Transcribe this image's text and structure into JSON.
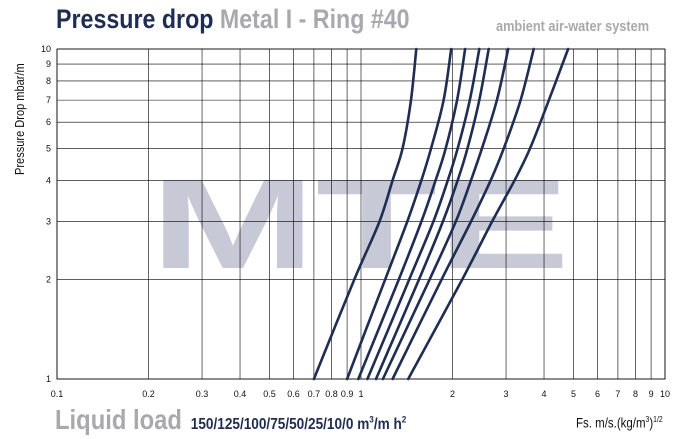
{
  "header": {
    "title_main": "Pressure drop",
    "title_sub": "Metal I - Ring #40",
    "system": "ambient air-water system"
  },
  "footer": {
    "liquid_label": "Liquid load",
    "liquid_values": "150/125/100/75/50/25/10/0",
    "liquid_unit_base": "m",
    "liquid_unit_exp": "3",
    "liquid_unit_tail": "/m h",
    "liquid_unit_exp2": "2",
    "fs_base": "Fs. m/s.(kg/m",
    "fs_exp": "3",
    "fs_close": ")",
    "fs_exp2": "1/2"
  },
  "watermark": "MTE",
  "colors": {
    "curve": "#1f2d52",
    "grid": "#000000",
    "watermark": "#c8c9d6",
    "title": "#1f2d52",
    "muted": "#a9a9ad"
  },
  "chart_data": {
    "type": "line",
    "title": "Pressure drop Metal I - Ring #40",
    "subtitle": "ambient air-water system",
    "xlabel": "Fs. m/s.(kg/m3)1/2",
    "ylabel": "Pressure Drop mbar/m",
    "x_scale": "log",
    "y_scale": "log",
    "xlim": [
      0.1,
      10
    ],
    "ylim": [
      1,
      10
    ],
    "x_ticks": [
      "0.1",
      "0.2",
      "0.3",
      "0.4",
      "0.5",
      "0.6",
      "0.7",
      "0.8",
      "0.9",
      "1",
      "2",
      "3",
      "4",
      "5",
      "6",
      "7",
      "8",
      "9",
      "10"
    ],
    "x_tick_values": [
      0.1,
      0.2,
      0.3,
      0.4,
      0.5,
      0.6,
      0.7,
      0.8,
      0.9,
      1,
      2,
      3,
      4,
      5,
      6,
      7,
      8,
      9,
      10
    ],
    "y_ticks": [
      "1",
      "2",
      "3",
      "4",
      "5",
      "6",
      "7",
      "8",
      "9",
      "10"
    ],
    "y_tick_values": [
      1,
      2,
      3,
      4,
      5,
      6,
      7,
      8,
      9,
      10
    ],
    "grid": true,
    "series": [
      {
        "name": "150",
        "points": [
          [
            0.7,
            1
          ],
          [
            0.95,
            2
          ],
          [
            1.15,
            3
          ],
          [
            1.27,
            4
          ],
          [
            1.37,
            5
          ],
          [
            1.46,
            7
          ],
          [
            1.52,
            10
          ]
        ]
      },
      {
        "name": "125",
        "points": [
          [
            0.9,
            1
          ],
          [
            1.2,
            2
          ],
          [
            1.42,
            3
          ],
          [
            1.58,
            4
          ],
          [
            1.7,
            5
          ],
          [
            1.87,
            7
          ],
          [
            1.98,
            10
          ]
        ]
      },
      {
        "name": "100",
        "points": [
          [
            0.98,
            1
          ],
          [
            1.33,
            2
          ],
          [
            1.58,
            3
          ],
          [
            1.76,
            4
          ],
          [
            1.9,
            5
          ],
          [
            2.07,
            7
          ],
          [
            2.2,
            10
          ]
        ]
      },
      {
        "name": "75",
        "points": [
          [
            1.05,
            1
          ],
          [
            1.44,
            2
          ],
          [
            1.73,
            3
          ],
          [
            1.93,
            4
          ],
          [
            2.08,
            5
          ],
          [
            2.28,
            7
          ],
          [
            2.45,
            10
          ]
        ]
      },
      {
        "name": "50",
        "points": [
          [
            1.12,
            1
          ],
          [
            1.55,
            2
          ],
          [
            1.86,
            3
          ],
          [
            2.08,
            4
          ],
          [
            2.24,
            5
          ],
          [
            2.45,
            7
          ],
          [
            2.63,
            10
          ]
        ]
      },
      {
        "name": "25",
        "points": [
          [
            1.18,
            1
          ],
          [
            1.68,
            2
          ],
          [
            2.05,
            3
          ],
          [
            2.3,
            4
          ],
          [
            2.5,
            5
          ],
          [
            2.8,
            7
          ],
          [
            3.05,
            10
          ]
        ]
      },
      {
        "name": "10",
        "points": [
          [
            1.27,
            1
          ],
          [
            1.84,
            2
          ],
          [
            2.3,
            3
          ],
          [
            2.67,
            4
          ],
          [
            2.95,
            5
          ],
          [
            3.35,
            7
          ],
          [
            3.7,
            10
          ]
        ]
      },
      {
        "name": "0",
        "points": [
          [
            1.43,
            1
          ],
          [
            2.15,
            2
          ],
          [
            2.7,
            3
          ],
          [
            3.2,
            4
          ],
          [
            3.6,
            5
          ],
          [
            4.15,
            7
          ],
          [
            4.8,
            10
          ]
        ]
      }
    ]
  }
}
